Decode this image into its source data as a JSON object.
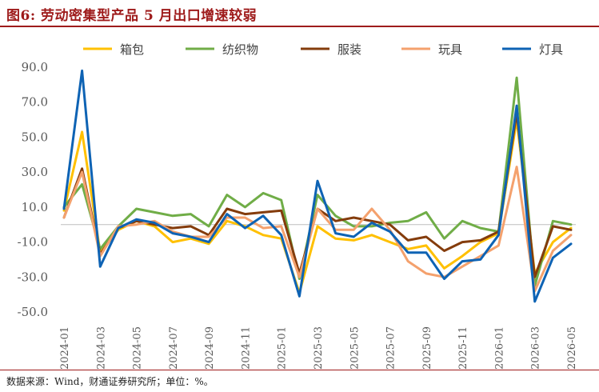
{
  "title": "图6: 劳动密集型产品 5 月出口增速较弱",
  "source": "数据来源：Wind，财通证券研究所；单位：%。",
  "chart_data": {
    "type": "line",
    "yticks": [
      "90.0",
      "70.0",
      "50.0",
      "30.0",
      "10.0",
      "-10.0",
      "-30.0",
      "-50.0"
    ],
    "ylim": [
      -50,
      90
    ],
    "legend_position": "top",
    "x": [
      "2024-01",
      "2024-02",
      "2024-03",
      "2024-04",
      "2024-05",
      "2024-06",
      "2024-07",
      "2024-08",
      "2024-09",
      "2024-10",
      "2024-11",
      "2024-12",
      "2025-01",
      "2025-02",
      "2025-03",
      "2025-04",
      "2025-05",
      "2025-06",
      "2025-07",
      "2025-08",
      "2025-09",
      "2025-10",
      "2025-11",
      "2025-12",
      "2026-01",
      "2026-02",
      "2026-03",
      "2026-04",
      "2026-05"
    ],
    "xtick_labels": [
      "2024-01",
      "2024-03",
      "2024-05",
      "2024-07",
      "2024-09",
      "2024-11",
      "2025-01",
      "2025-03",
      "2025-05",
      "2025-07",
      "2025-09",
      "2025-11",
      "2026-01",
      "2026-03",
      "2026-05"
    ],
    "series": [
      {
        "name": "箱包",
        "color": "#ffc000",
        "values": [
          8,
          53,
          -16,
          -3,
          2,
          -1,
          -10,
          -8,
          -11,
          2,
          -1,
          -6,
          -8,
          -39,
          -1,
          -8,
          -9,
          -6,
          -10,
          -14,
          -12,
          -25,
          -18,
          -10,
          -5,
          60,
          -28,
          -10,
          -2
        ]
      },
      {
        "name": "纺织物",
        "color": "#70ad47",
        "values": [
          10,
          23,
          -14,
          -1,
          9,
          7,
          5,
          6,
          -1,
          17,
          10,
          18,
          14,
          -31,
          17,
          5,
          -1,
          -1,
          1,
          2,
          7,
          -8,
          2,
          -2,
          -4,
          84,
          -35,
          2,
          0
        ]
      },
      {
        "name": "服装",
        "color": "#843c0c",
        "values": [
          4,
          32,
          -17,
          -2,
          2,
          0,
          -2,
          -1,
          -6,
          9,
          6,
          7,
          8,
          -28,
          9,
          2,
          4,
          2,
          0,
          -9,
          -7,
          -15,
          -10,
          -9,
          -4,
          64,
          -30,
          -1,
          -3
        ]
      },
      {
        "name": "玩具",
        "color": "#f4a16d",
        "values": [
          4,
          30,
          -18,
          -1,
          0,
          2,
          -4,
          -7,
          -7,
          4,
          4,
          -2,
          -1,
          -30,
          9,
          -3,
          -3,
          9,
          -3,
          -21,
          -28,
          -30,
          -24,
          -18,
          -12,
          33,
          -38,
          -15,
          -6
        ]
      },
      {
        "name": "灯具",
        "color": "#0e63b4",
        "values": [
          9,
          88,
          -24,
          -2,
          3,
          1,
          -5,
          -7,
          -10,
          6,
          -2,
          5,
          -6,
          -41,
          25,
          -5,
          -7,
          1,
          -4,
          -16,
          -16,
          -31,
          -21,
          -20,
          -6,
          68,
          -44,
          -19,
          -11
        ]
      }
    ]
  }
}
